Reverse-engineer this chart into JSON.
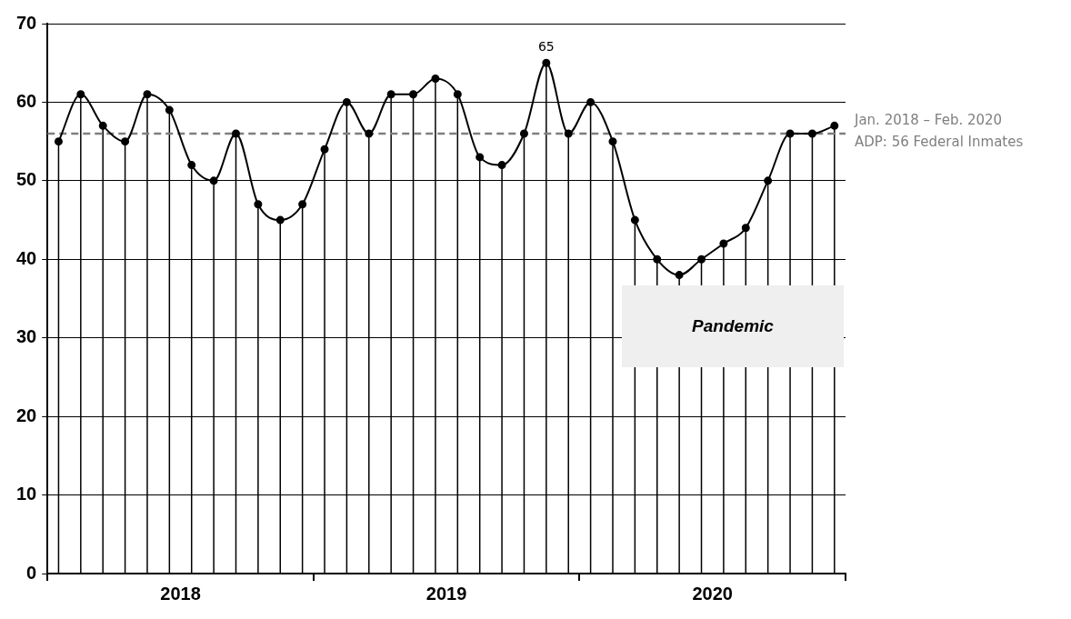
{
  "chart_data": {
    "type": "line",
    "x": [
      "2018-01",
      "2018-02",
      "2018-03",
      "2018-04",
      "2018-05",
      "2018-06",
      "2018-07",
      "2018-08",
      "2018-09",
      "2018-10",
      "2018-11",
      "2018-12",
      "2019-01",
      "2019-02",
      "2019-03",
      "2019-04",
      "2019-05",
      "2019-06",
      "2019-07",
      "2019-08",
      "2019-09",
      "2019-10",
      "2019-11",
      "2019-12",
      "2020-01",
      "2020-02",
      "2020-03",
      "2020-04",
      "2020-05",
      "2020-06",
      "2020-07",
      "2020-08",
      "2020-09",
      "2020-10",
      "2020-11",
      "2020-12"
    ],
    "series": [
      {
        "color": "#000000",
        "marker": "none",
        "values": [
          55,
          61,
          57,
          55,
          61,
          59,
          52,
          50,
          56,
          47,
          45,
          47,
          54,
          60,
          56,
          61,
          61,
          63,
          61,
          53,
          52,
          56,
          65,
          56,
          60,
          55,
          45,
          40,
          38,
          40,
          42,
          44,
          50,
          56,
          56,
          57
        ]
      },
      {
        "type": "lollipop",
        "color": "#000000",
        "values": [
          55,
          61,
          57,
          55,
          61,
          59,
          52,
          50,
          56,
          47,
          45,
          47,
          54,
          60,
          56,
          61,
          61,
          63,
          61,
          53,
          52,
          56,
          65,
          56,
          60,
          55,
          45,
          40,
          38,
          40,
          42,
          44,
          50,
          56,
          56,
          57
        ],
        "value_labels": [
          null,
          null,
          null,
          null,
          null,
          null,
          null,
          null,
          null,
          null,
          null,
          null,
          null,
          null,
          null,
          null,
          null,
          null,
          null,
          null,
          null,
          null,
          "65",
          null,
          null,
          null,
          null,
          null,
          null,
          null,
          null,
          null,
          null,
          null,
          null,
          null
        ]
      }
    ],
    "xlim": [
      "2017-12-16",
      "2020-12-16"
    ],
    "xticks": [
      {
        "value": "2017-12-16",
        "label": null
      },
      {
        "value": "2018-06-16",
        "label": "2018"
      },
      {
        "value": "2018-12-16",
        "label": null
      },
      {
        "value": "2019-06-16",
        "label": "2019"
      },
      {
        "value": "2019-12-16",
        "label": null
      },
      {
        "value": "2020-06-16",
        "label": "2020"
      },
      {
        "value": "2020-12-16",
        "label": null
      }
    ],
    "ylim": [
      0,
      70
    ],
    "yticks": [
      0,
      10,
      20,
      30,
      40,
      50,
      60,
      70
    ],
    "grid": "y",
    "marker": "circle",
    "line_style": "solid",
    "legend": false,
    "ref_lines": [
      {
        "axis": "y",
        "value": 56,
        "label": "Jan. 2018 – Feb. 2020\nADP: 56 Federal Inmates",
        "color": "#7f7f7f",
        "line_style": "dashed"
      }
    ],
    "annotations": [
      "Pandemic"
    ]
  }
}
